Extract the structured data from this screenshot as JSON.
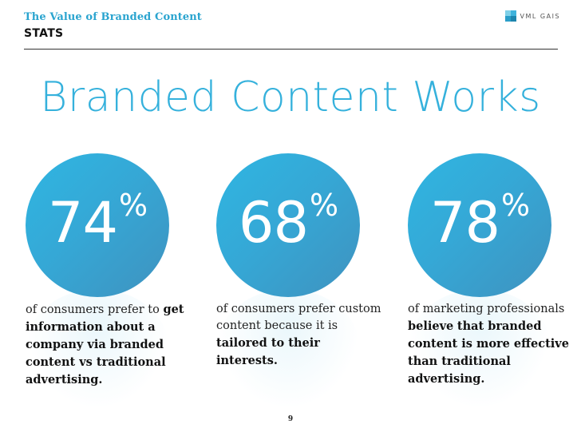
{
  "header": {
    "kicker": "The Value of Branded Content",
    "section": "STATS",
    "logo_text": "VML GAIS"
  },
  "headline": "Branded Content Works",
  "stats": [
    {
      "value": "74",
      "unit": "%",
      "caption_parts": [
        {
          "text": "of consumers prefer to ",
          "bold": false
        },
        {
          "text": "get information about a company via branded content vs traditional advertising.",
          "bold": true
        }
      ]
    },
    {
      "value": "68",
      "unit": "%",
      "caption_parts": [
        {
          "text": "of consumers prefer custom content because it is ",
          "bold": false
        },
        {
          "text": "tailored to their interests.",
          "bold": true
        }
      ]
    },
    {
      "value": "78",
      "unit": "%",
      "caption_parts": [
        {
          "text": "of marketing professionals ",
          "bold": false
        },
        {
          "text": "believe",
          "bold": true
        },
        {
          "text": " ",
          "bold": false
        },
        {
          "text": "that branded content is more effective than traditional advertising.",
          "bold": true
        }
      ]
    }
  ],
  "page_number": "9",
  "colors": {
    "accent": "#35b1dc",
    "circle_start": "#2fb6e2",
    "circle_end": "#3f92bf",
    "text": "#222222"
  }
}
